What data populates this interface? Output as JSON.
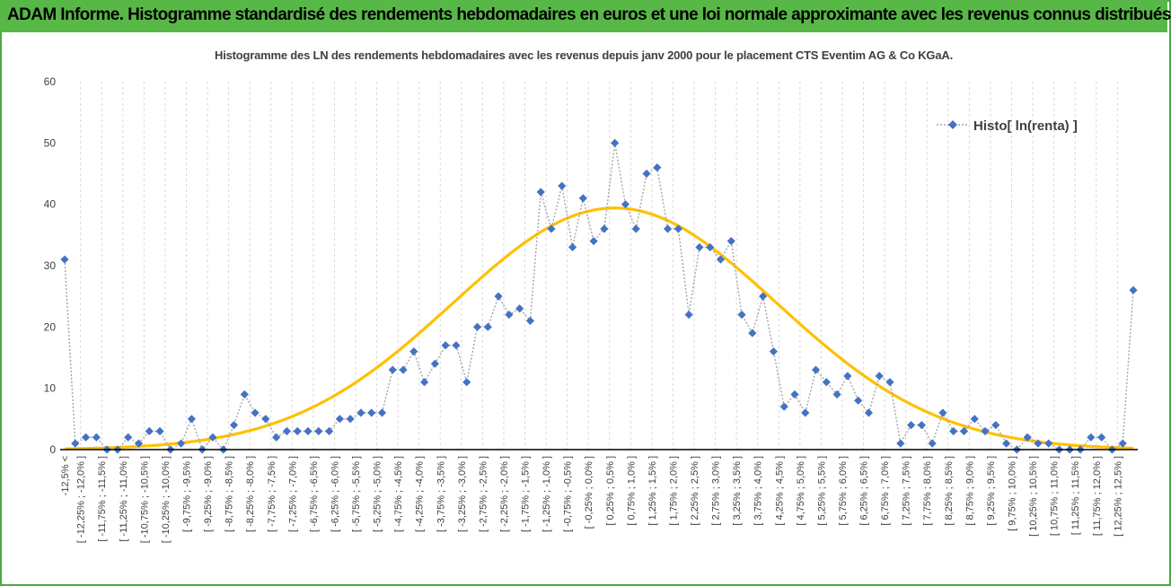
{
  "header": {
    "title": "ADAM Informe. Histogramme standardisé des rendements hebdomadaires en euros et une loi normale approximante avec les revenus connus distribués"
  },
  "colors": {
    "header_bg": "#58b847",
    "marker": "#4472c4",
    "dotted_line": "#a5a5a5",
    "normal_curve": "#ffc000",
    "axis": "#000000",
    "grid": "#d9d9d9"
  },
  "chart_data": {
    "type": "scatter",
    "title": "Histogramme des LN des rendements hebdomadaires avec les revenus depuis janv 2000 pour le placement CTS Eventim AG & Co KGaA.",
    "xlabel": "",
    "ylabel": "",
    "ylim": [
      0,
      60
    ],
    "yticks": [
      "0",
      "10",
      "20",
      "30",
      "40",
      "50",
      "60"
    ],
    "grid": "vertical dashed lines between categories",
    "legend_position": "top-right",
    "categories": [
      "-12,5% <",
      "[ -12,25% ; -12,0% ]",
      "[ -11,75% ; -11,5% ]",
      "[ -11,25% ; -11,0% ]",
      "[ -10,75% ; -10,5% ]",
      "[ -10,25% ; -10,0% ]",
      "[ -9,75% ; -9,5% ]",
      "[ -9,25% ; -9,0% ]",
      "[ -8,75% ; -8,5% ]",
      "[ -8,25% ; -8,0% ]",
      "[ -7,75% ; -7,5% ]",
      "[ -7,25% ; -7,0% ]",
      "[ -6,75% ; -6,5% ]",
      "[ -6,25% ; -6,0% ]",
      "[ -5,75% ; -5,5% ]",
      "[ -5,25% ; -5,0% ]",
      "[ -4,75% ; -4,5% ]",
      "[ -4,25% ; -4,0% ]",
      "[ -3,75% ; -3,5% ]",
      "[ -3,25% ; -3,0% ]",
      "[ -2,75% ; -2,5% ]",
      "[ -2,25% ; -2,0% ]",
      "[ -1,75% ; -1,5% ]",
      "[ -1,25% ; -1,0% ]",
      "[ -0,75% ; -0,5% ]",
      "[ -0,25% ; 0,0% ]",
      "[ 0,25% ; 0,5% ]",
      "[ 0,75% ; 1,0% ]",
      "[ 1,25% ; 1,5% ]",
      "[ 1,75% ; 2,0% ]",
      "[ 2,25% ; 2,5% ]",
      "[ 2,75% ; 3,0% ]",
      "[ 3,25% ; 3,5% ]",
      "[ 3,75% ; 4,0% ]",
      "[ 4,25% ; 4,5% ]",
      "[ 4,75% ; 5,0% ]",
      "[ 5,25% ; 5,5% ]",
      "[ 5,75% ; 6,0% ]",
      "[ 6,25% ; 6,5% ]",
      "[ 6,75% ; 7,0% ]",
      "[ 7,25% ; 7,5% ]",
      "[ 7,75% ; 8,0% ]",
      "[ 8,25% ; 8,5% ]",
      "[ 8,75% ; 9,0% ]",
      "[ 9,25% ; 9,5% ]",
      "[ 9,75% ; 10,0% ]",
      "[ 10,25% ; 10,5% ]",
      "[ 10,75% ; 11,0% ]",
      "[ 11,25% ; 11,5% ]",
      "[ 11,75% ; 12,0% ]",
      "[ 12,25% ; 12,5% ]"
    ],
    "series": [
      {
        "name": "Histo[ ln(renta) ]",
        "marker": "diamond",
        "values": [
          31,
          1,
          2,
          2,
          0,
          0,
          2,
          1,
          3,
          3,
          0,
          1,
          5,
          0,
          2,
          0,
          4,
          9,
          6,
          5,
          2,
          3,
          3,
          3,
          3,
          3,
          5,
          5,
          6,
          6,
          6,
          13,
          13,
          16,
          11,
          14,
          17,
          17,
          11,
          20,
          20,
          25,
          22,
          23,
          21,
          42,
          36,
          43,
          33,
          41,
          34,
          36,
          50,
          40,
          36,
          45,
          46,
          36,
          36,
          22,
          33,
          33,
          31,
          34,
          22,
          19,
          25,
          16,
          7,
          9,
          6,
          13,
          11,
          9,
          12,
          8,
          6,
          12,
          11,
          1,
          4,
          4,
          1,
          6,
          3,
          3,
          5,
          3,
          4,
          1,
          0,
          2,
          1,
          1,
          0,
          0,
          0,
          2,
          2,
          0,
          1,
          26
        ]
      }
    ],
    "normal_curve": {
      "peak_value": 39.4,
      "peak_at_point_index": 52,
      "sigma_in_points": 15.3
    }
  }
}
